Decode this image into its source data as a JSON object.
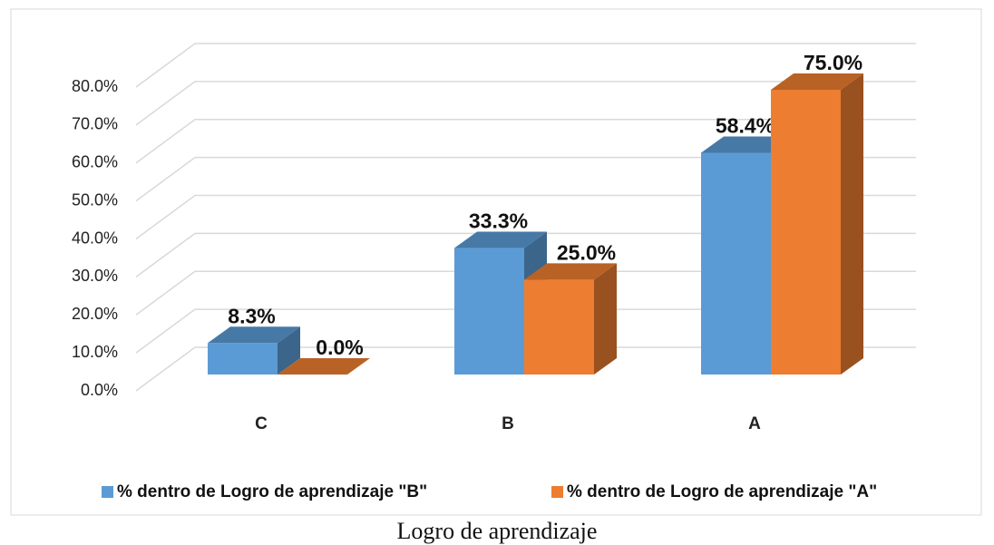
{
  "chart_data": {
    "type": "bar3d",
    "title": "Logro de aprendizaje",
    "categories": [
      "C",
      "B",
      "A"
    ],
    "series": [
      {
        "name": "% dentro de Logro de aprendizaje \"B\"",
        "color": "#5b9bd5",
        "values": [
          8.3,
          33.3,
          58.4
        ],
        "value_labels": [
          "8.3%",
          "33.3%",
          "58.4%"
        ]
      },
      {
        "name": "% dentro de Logro de aprendizaje \"A\"",
        "color": "#ed7d31",
        "values": [
          0.0,
          25.0,
          75.0
        ],
        "value_labels": [
          "0.0%",
          "25.0%",
          "75.0%"
        ]
      }
    ],
    "ylim": [
      0,
      80
    ],
    "yticks": [
      {
        "value": 0,
        "label": "0.0%"
      },
      {
        "value": 10,
        "label": "10.0%"
      },
      {
        "value": 20,
        "label": "20.0%"
      },
      {
        "value": 30,
        "label": "30.0%"
      },
      {
        "value": 40,
        "label": "40.0%"
      },
      {
        "value": 50,
        "label": "50.0%"
      },
      {
        "value": 60,
        "label": "60.0%"
      },
      {
        "value": 70,
        "label": "70.0%"
      },
      {
        "value": 80,
        "label": "80.0%"
      }
    ],
    "grid": true,
    "legend": "bottom"
  }
}
